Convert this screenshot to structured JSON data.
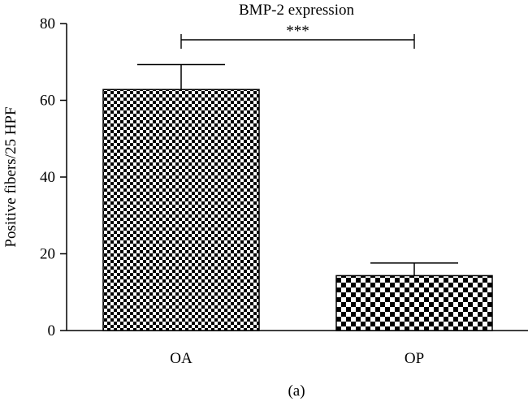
{
  "chart_data": {
    "type": "bar",
    "title": "BMP-2 expression",
    "ylabel": "Positive fibers/25 HPF",
    "xlabel": "",
    "categories": [
      "OA",
      "OP"
    ],
    "values": [
      62.8,
      14.3
    ],
    "errors": [
      6.5,
      3.3
    ],
    "ylim": [
      0,
      80
    ],
    "yticks": [
      0,
      20,
      40,
      60,
      80
    ],
    "significance": {
      "between": [
        "OA",
        "OP"
      ],
      "label": "***"
    },
    "panel_label": "(a)",
    "patterns": [
      "fine-checkerboard",
      "coarse-checkerboard"
    ],
    "grid": false,
    "legend": "none",
    "colors": {
      "bar_dark": "#000000",
      "bar_light": "#ffffff",
      "axis": "#000000"
    }
  }
}
